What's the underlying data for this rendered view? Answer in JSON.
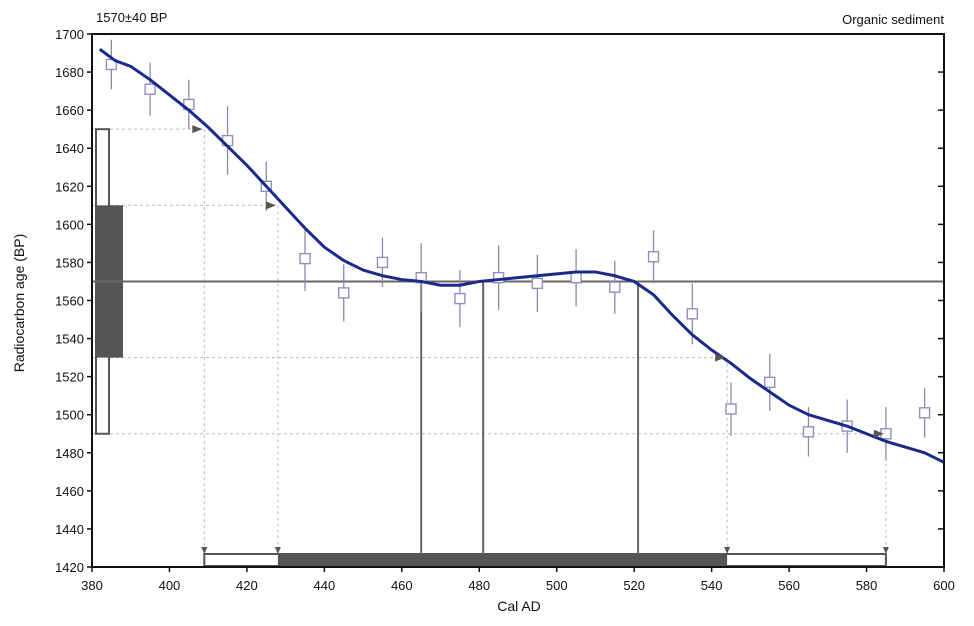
{
  "chart_data": {
    "type": "line",
    "header_left": "1570±40 BP",
    "header_right": "Organic sediment",
    "xlabel": "Cal AD",
    "ylabel": "Radiocarbon age (BP)",
    "xlim": [
      380,
      600
    ],
    "ylim": [
      1420,
      1700
    ],
    "x_ticks": [
      380,
      400,
      420,
      440,
      460,
      480,
      500,
      520,
      540,
      560,
      580,
      600
    ],
    "y_ticks": [
      1420,
      1440,
      1460,
      1480,
      1500,
      1520,
      1540,
      1560,
      1580,
      1600,
      1620,
      1640,
      1660,
      1680,
      1700
    ],
    "grid": false,
    "colors": {
      "curve": "#1a2a8a",
      "points": "#9090c0",
      "bars": "#555555",
      "guide": "#bbbbbb",
      "intercept": "#666666"
    },
    "calibration_curve": {
      "x": [
        382,
        386,
        390,
        395,
        400,
        405,
        410,
        415,
        420,
        425,
        430,
        435,
        440,
        445,
        450,
        455,
        460,
        465,
        470,
        475,
        480,
        485,
        490,
        495,
        500,
        505,
        510,
        515,
        520,
        525,
        530,
        535,
        540,
        545,
        550,
        555,
        560,
        565,
        570,
        575,
        580,
        585,
        590,
        595,
        600
      ],
      "y": [
        1692,
        1686,
        1683,
        1676,
        1668,
        1660,
        1651,
        1641,
        1631,
        1620,
        1609,
        1598,
        1588,
        1581,
        1576,
        1573,
        1571,
        1570,
        1568,
        1568,
        1570,
        1571,
        1572,
        1573,
        1574,
        1575,
        1575,
        1573,
        1570,
        1563,
        1552,
        1542,
        1534,
        1527,
        1519,
        1512,
        1505,
        1500,
        1497,
        1494,
        1490,
        1486,
        1483,
        1480,
        1475
      ]
    },
    "measured_points": {
      "x": [
        385,
        395,
        405,
        415,
        425,
        435,
        445,
        455,
        465,
        475,
        485,
        495,
        505,
        515,
        525,
        535,
        545,
        555,
        565,
        575,
        585,
        595
      ],
      "y": [
        1684,
        1671,
        1663,
        1644,
        1620,
        1582,
        1564,
        1580,
        1572,
        1561,
        1572,
        1569,
        1572,
        1567,
        1583,
        1553,
        1503,
        1517,
        1491,
        1494,
        1490,
        1501
      ],
      "err": [
        13,
        14,
        13,
        18,
        13,
        17,
        15,
        13,
        18,
        15,
        17,
        15,
        15,
        14,
        14,
        16,
        14,
        15,
        13,
        14,
        14,
        13
      ]
    },
    "radiocarbon_date": {
      "mean": 1570,
      "sigma1": [
        1530,
        1610
      ],
      "sigma2": [
        1490,
        1650
      ]
    },
    "calibrated_ranges": {
      "sigma2": [
        409,
        585
      ],
      "sigma1": [
        428,
        544
      ]
    },
    "intercepts": [
      465,
      481,
      521
    ],
    "curve_markers": [
      {
        "x": 409,
        "y": 1650
      },
      {
        "x": 428,
        "y": 1610
      },
      {
        "x": 544,
        "y": 1530
      },
      {
        "x": 585,
        "y": 1490
      }
    ]
  }
}
